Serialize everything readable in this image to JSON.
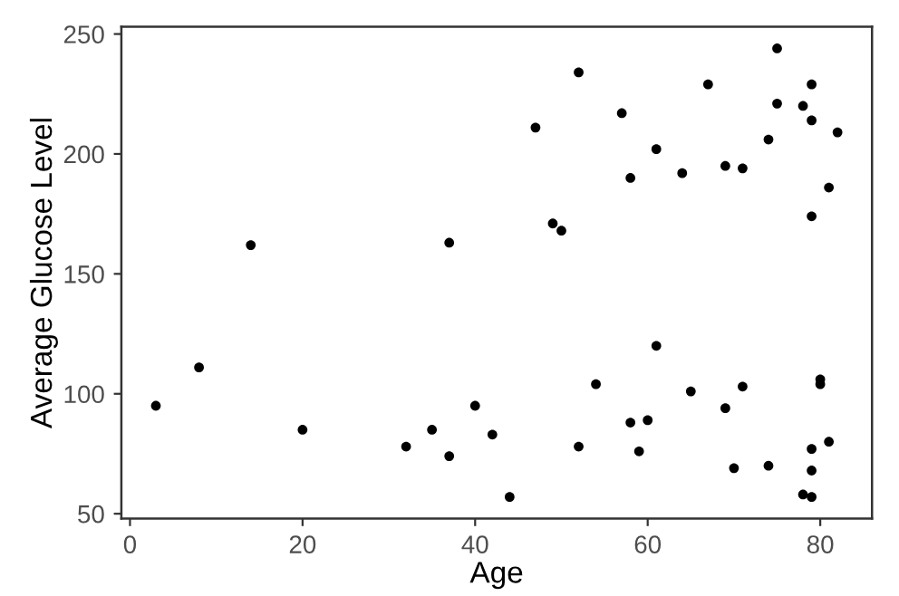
{
  "chart_data": {
    "type": "scatter",
    "xlabel": "Age",
    "ylabel": "Average Glucose Level",
    "x": [
      3,
      8,
      14,
      20,
      32,
      35,
      37,
      37,
      40,
      42,
      44,
      47,
      49,
      50,
      52,
      52,
      54,
      57,
      58,
      58,
      59,
      60,
      61,
      61,
      64,
      65,
      67,
      69,
      69,
      70,
      71,
      71,
      74,
      74,
      75,
      75,
      78,
      78,
      79,
      79,
      79,
      79,
      79,
      79,
      80,
      80,
      81,
      81,
      82
    ],
    "values": [
      95,
      111,
      162,
      85,
      78,
      85,
      163,
      74,
      95,
      83,
      57,
      211,
      171,
      168,
      234,
      78,
      104,
      217,
      190,
      88,
      76,
      89,
      202,
      120,
      192,
      101,
      229,
      195,
      94,
      69,
      194,
      103,
      206,
      70,
      244,
      221,
      220,
      58,
      229,
      214,
      174,
      77,
      68,
      57,
      106,
      104,
      186,
      80,
      209
    ],
    "color": "#000000",
    "marker": "circle",
    "xlim": [
      -1,
      86
    ],
    "ylim": [
      48,
      253
    ],
    "xticks": [
      0,
      20,
      40,
      60,
      80
    ],
    "yticks": [
      50,
      100,
      150,
      200,
      250
    ],
    "grid": false
  }
}
